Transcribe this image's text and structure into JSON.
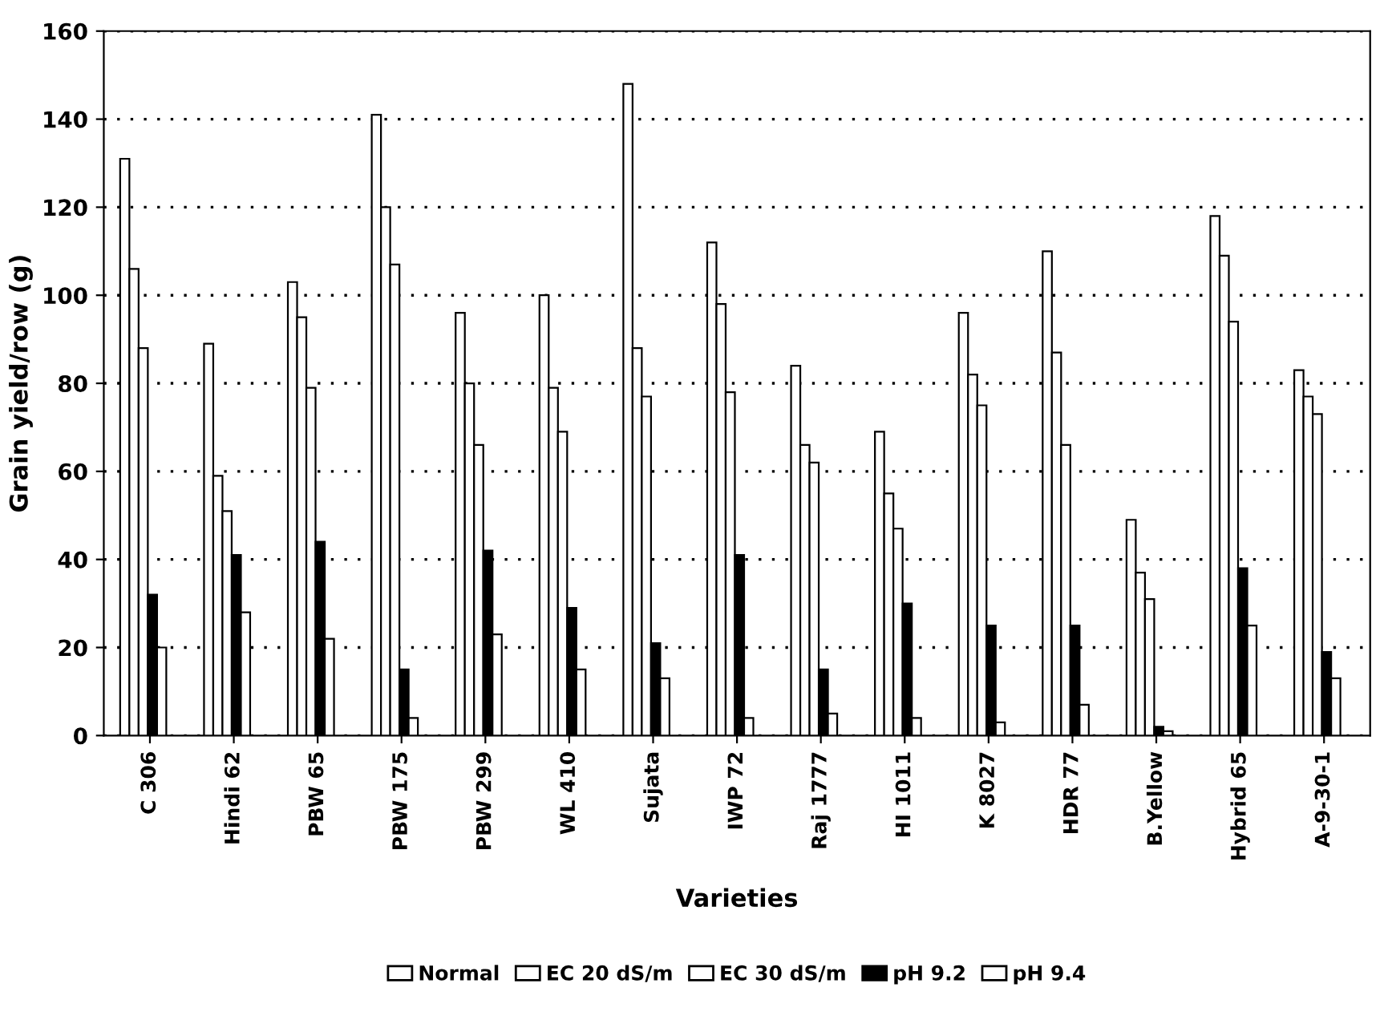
{
  "chart_data": {
    "type": "bar",
    "xlabel": "Varieties",
    "ylabel": "Grain yield/row (g)",
    "categories": [
      "C 306",
      "Hindi 62",
      "PBW 65",
      "PBW 175",
      "PBW 299",
      "WL 410",
      "Sujata",
      "IWP 72",
      "Raj 1777",
      "HI 1011",
      "K 8027",
      "HDR 77",
      "B.Yellow",
      "Hybrid 65",
      "A-9-30-1"
    ],
    "series": [
      {
        "name": "Normal",
        "color": "#ffffff",
        "values": [
          131,
          89,
          103,
          141,
          96,
          100,
          148,
          112,
          84,
          69,
          96,
          110,
          49,
          118,
          83
        ]
      },
      {
        "name": "EC 20 dS/m",
        "color": "#ffffff",
        "values": [
          106,
          59,
          95,
          120,
          80,
          79,
          88,
          98,
          66,
          55,
          82,
          87,
          37,
          109,
          77
        ]
      },
      {
        "name": "EC 30 dS/m",
        "color": "#ffffff",
        "values": [
          88,
          51,
          79,
          107,
          66,
          69,
          77,
          78,
          62,
          47,
          75,
          66,
          31,
          94,
          73
        ]
      },
      {
        "name": "pH 9.2",
        "color": "#000000",
        "values": [
          32,
          41,
          44,
          15,
          42,
          29,
          21,
          41,
          15,
          30,
          25,
          25,
          2,
          38,
          19
        ]
      },
      {
        "name": "pH 9.4",
        "color": "#ffffff",
        "values": [
          20,
          28,
          22,
          4,
          23,
          15,
          13,
          4,
          5,
          4,
          3,
          7,
          1,
          25,
          13
        ]
      }
    ],
    "ylim": [
      0,
      160
    ],
    "yticks": [
      0,
      20,
      40,
      60,
      80,
      100,
      120,
      140,
      160
    ],
    "grid": "y",
    "legend": "bottom"
  }
}
